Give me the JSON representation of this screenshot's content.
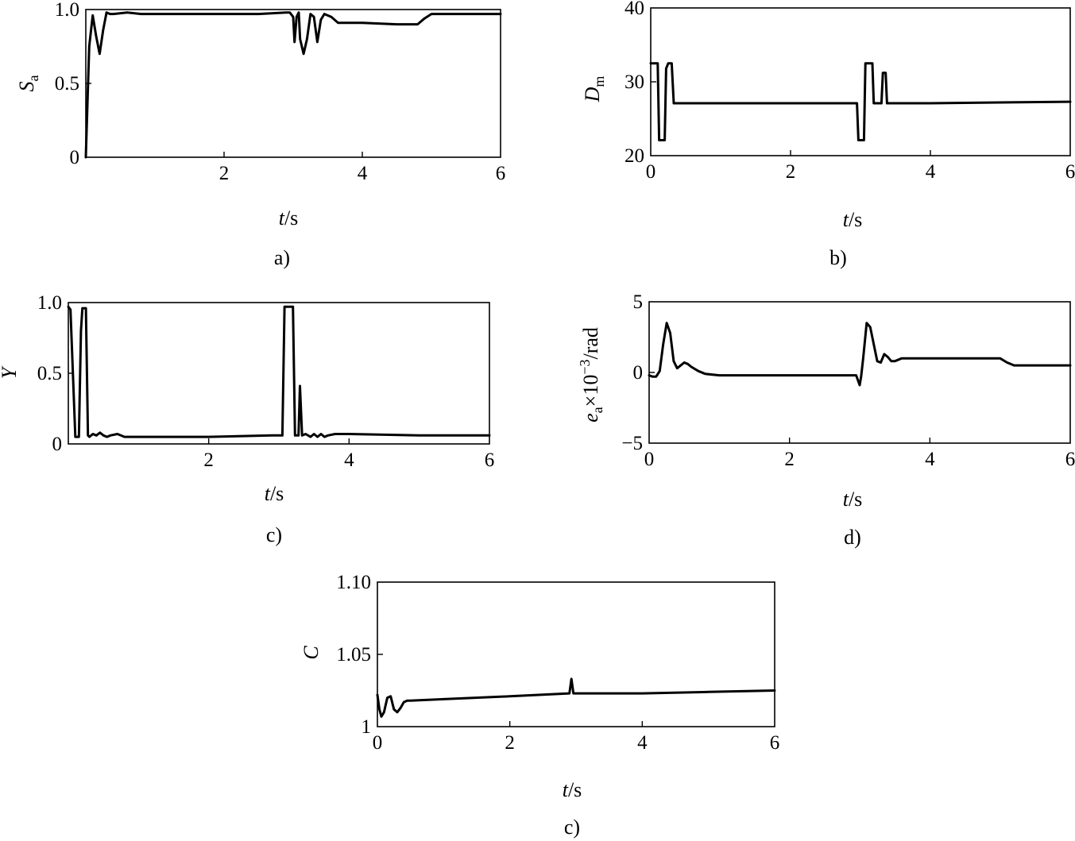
{
  "chart_data": [
    {
      "id": "a",
      "type": "line",
      "caption": "a)",
      "ylabel_sym": "S",
      "ylabel_sub": "a",
      "xlabel_sym": "t",
      "xlabel_unit": "/s",
      "xlim": [
        0,
        6
      ],
      "ylim": [
        0,
        1.0
      ],
      "xticks": [
        2,
        4,
        6
      ],
      "xtick_labels": [
        "2",
        "4",
        "6"
      ],
      "yticks": [
        0,
        0.5,
        1.0
      ],
      "ytick_labels": [
        "0",
        "0.5",
        "1.0"
      ],
      "grid": false,
      "series": [
        {
          "x": [
            0,
            0.02,
            0.05,
            0.08,
            0.1,
            0.15,
            0.2,
            0.25,
            0.3,
            0.35,
            0.4,
            0.6,
            0.8,
            1.0,
            1.5,
            2.0,
            2.5,
            2.9,
            2.95,
            3.0,
            3.02,
            3.05,
            3.08,
            3.1,
            3.15,
            3.2,
            3.25,
            3.3,
            3.35,
            3.4,
            3.45,
            3.55,
            3.65,
            3.75,
            4.0,
            4.5,
            4.8,
            4.9,
            5.0,
            5.5,
            6.0
          ],
          "y": [
            0,
            0.3,
            0.75,
            0.88,
            0.96,
            0.82,
            0.7,
            0.86,
            0.98,
            0.97,
            0.97,
            0.98,
            0.97,
            0.97,
            0.97,
            0.97,
            0.97,
            0.98,
            0.98,
            0.95,
            0.78,
            0.95,
            0.98,
            0.8,
            0.7,
            0.8,
            0.97,
            0.95,
            0.78,
            0.93,
            0.97,
            0.95,
            0.91,
            0.91,
            0.91,
            0.9,
            0.9,
            0.94,
            0.97,
            0.97,
            0.97
          ]
        }
      ]
    },
    {
      "id": "b",
      "type": "line",
      "caption": "b)",
      "ylabel_sym": "D",
      "ylabel_sub": "m",
      "xlabel_sym": "t",
      "xlabel_unit": "/s",
      "xlim": [
        0,
        6
      ],
      "ylim": [
        20,
        40
      ],
      "xticks": [
        0,
        2,
        4,
        6
      ],
      "xtick_labels": [
        "0",
        "2",
        "4",
        "6"
      ],
      "yticks": [
        20,
        30,
        40
      ],
      "ytick_labels": [
        "20",
        "30",
        "40"
      ],
      "grid": false,
      "series": [
        {
          "x": [
            0,
            0.1,
            0.12,
            0.2,
            0.22,
            0.25,
            0.3,
            0.33,
            0.35,
            1.0,
            2.0,
            2.95,
            2.97,
            3.05,
            3.07,
            3.17,
            3.19,
            3.3,
            3.32,
            3.36,
            3.38,
            4.0,
            5.0,
            6.0
          ],
          "y": [
            32.5,
            32.5,
            22.1,
            22.1,
            31.8,
            32.5,
            32.5,
            27.1,
            27.1,
            27.1,
            27.1,
            27.1,
            22.1,
            22.1,
            32.5,
            32.5,
            27.1,
            27.1,
            31.2,
            31.2,
            27.1,
            27.1,
            27.2,
            27.3
          ]
        }
      ]
    },
    {
      "id": "c",
      "type": "line",
      "caption": "c)",
      "ylabel_sym": "Y",
      "ylabel_sub": "",
      "xlabel_sym": "t",
      "xlabel_unit": "/s",
      "xlim": [
        0,
        6
      ],
      "ylim": [
        0,
        1.0
      ],
      "xticks": [
        2,
        4,
        6
      ],
      "xtick_labels": [
        "2",
        "4",
        "6"
      ],
      "yticks": [
        0,
        0.5,
        1.0
      ],
      "ytick_labels": [
        "0",
        "0.5",
        "1.0"
      ],
      "grid": false,
      "series": [
        {
          "x": [
            0,
            0.03,
            0.1,
            0.15,
            0.18,
            0.2,
            0.25,
            0.28,
            0.3,
            0.35,
            0.4,
            0.45,
            0.5,
            0.55,
            0.6,
            0.7,
            0.8,
            1.0,
            2.0,
            2.9,
            3.05,
            3.08,
            3.1,
            3.2,
            3.23,
            3.28,
            3.3,
            3.33,
            3.38,
            3.45,
            3.5,
            3.55,
            3.6,
            3.65,
            3.7,
            3.8,
            4.0,
            5.0,
            6.0
          ],
          "y": [
            0.97,
            0.95,
            0.05,
            0.05,
            0.8,
            0.96,
            0.96,
            0.06,
            0.05,
            0.07,
            0.06,
            0.08,
            0.06,
            0.05,
            0.06,
            0.07,
            0.05,
            0.05,
            0.05,
            0.06,
            0.06,
            0.97,
            0.97,
            0.97,
            0.06,
            0.06,
            0.41,
            0.06,
            0.07,
            0.05,
            0.07,
            0.05,
            0.07,
            0.05,
            0.06,
            0.07,
            0.07,
            0.06,
            0.06
          ]
        }
      ]
    },
    {
      "id": "d",
      "type": "line",
      "caption": "d)",
      "ylabel_sym": "e",
      "ylabel_sub": "a",
      "ylabel_rest": "×10",
      "ylabel_sup": "−3",
      "ylabel_unit": "/rad",
      "xlabel_sym": "t",
      "xlabel_unit": "/s",
      "xlim": [
        0,
        6
      ],
      "ylim": [
        -5,
        5
      ],
      "xticks": [
        0,
        2,
        4,
        6
      ],
      "xtick_labels": [
        "0",
        "2",
        "4",
        "6"
      ],
      "yticks": [
        -5,
        0,
        5
      ],
      "ytick_labels": [
        "−5",
        "0",
        "5"
      ],
      "grid": false,
      "series": [
        {
          "x": [
            0,
            0.05,
            0.1,
            0.15,
            0.2,
            0.25,
            0.3,
            0.35,
            0.4,
            0.45,
            0.5,
            0.55,
            0.6,
            0.7,
            0.8,
            1.0,
            2.0,
            2.95,
            3.0,
            3.02,
            3.05,
            3.1,
            3.15,
            3.2,
            3.25,
            3.3,
            3.35,
            3.4,
            3.45,
            3.5,
            3.6,
            4.0,
            4.5,
            5.0,
            5.1,
            5.2,
            5.5,
            6.0
          ],
          "y": [
            -0.2,
            -0.3,
            -0.3,
            0.1,
            2.0,
            3.5,
            2.8,
            0.8,
            0.3,
            0.5,
            0.7,
            0.6,
            0.4,
            0.1,
            -0.1,
            -0.2,
            -0.2,
            -0.2,
            -0.9,
            -0.3,
            1.0,
            3.5,
            3.2,
            2.0,
            0.8,
            0.7,
            1.3,
            1.1,
            0.8,
            0.8,
            1.0,
            1.0,
            1.0,
            1.0,
            0.7,
            0.5,
            0.5,
            0.5
          ]
        }
      ]
    },
    {
      "id": "e",
      "type": "line",
      "caption": "c)",
      "ylabel_sym": "C",
      "ylabel_sub": "",
      "xlabel_sym": "t",
      "xlabel_unit": "/s",
      "xlim": [
        0,
        6
      ],
      "ylim": [
        1.0,
        1.1
      ],
      "xticks": [
        0,
        2,
        4,
        6
      ],
      "xtick_labels": [
        "0",
        "2",
        "4",
        "6"
      ],
      "yticks": [
        1.0,
        1.05,
        1.1
      ],
      "ytick_labels": [
        "1",
        "1.05",
        "1.10"
      ],
      "grid": false,
      "series": [
        {
          "x": [
            0,
            0.03,
            0.06,
            0.1,
            0.15,
            0.2,
            0.25,
            0.3,
            0.35,
            0.4,
            0.45,
            0.5,
            1.0,
            2.0,
            2.9,
            2.93,
            2.96,
            3.0,
            4.0,
            5.0,
            6.0
          ],
          "y": [
            1.022,
            1.012,
            1.007,
            1.01,
            1.02,
            1.021,
            1.012,
            1.01,
            1.013,
            1.017,
            1.018,
            1.018,
            1.019,
            1.021,
            1.023,
            1.033,
            1.023,
            1.023,
            1.023,
            1.024,
            1.025
          ]
        }
      ]
    }
  ]
}
